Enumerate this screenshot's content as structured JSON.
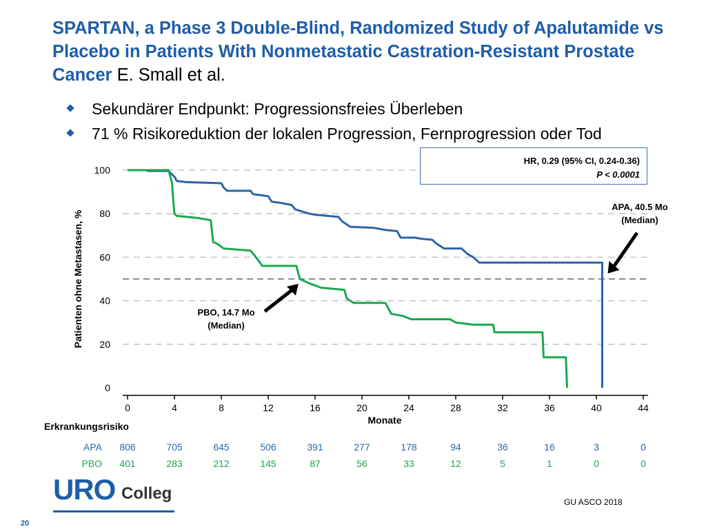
{
  "slide": {
    "title": "SPARTAN, a Phase 3 Double-Blind, Randomized Study of Apalutamide vs Placebo in Patients With Nonmetastatic Castration-Resistant Prostate Cancer",
    "authors": "E. Small et al.",
    "bullets": [
      "Sekundärer Endpunkt: Progressionsfreies Überleben",
      "71 % Risikoreduktion der lokalen Progression, Fernprogression oder Tod"
    ],
    "logo_uro": "URO",
    "logo_colleg": "Colleg",
    "source": "GU ASCO 2018",
    "page_number": "20"
  },
  "colors": {
    "title": "#1f5da8",
    "apa": "#2b64a8",
    "pbo": "#1aa84c",
    "grid": "#bbbbbb"
  },
  "chart_data": {
    "type": "line",
    "xlabel": "Monate",
    "ylabel": "Patienten ohne Metastasen, %",
    "xticks": [
      0,
      4,
      8,
      12,
      16,
      20,
      24,
      28,
      32,
      36,
      40,
      44
    ],
    "yticks": [
      0,
      20,
      40,
      60,
      80,
      100
    ],
    "xlim": [
      0,
      44
    ],
    "ylim": [
      0,
      100
    ],
    "median_line": 50,
    "hr_text": "HR, 0.29 (95% CI, 0.24-0.36)",
    "p_text": "P < 0.0001",
    "series": [
      {
        "name": "APA",
        "color": "#2b64a8",
        "points": [
          [
            0,
            100
          ],
          [
            1.5,
            100
          ],
          [
            1.8,
            99.6
          ],
          [
            3.5,
            99.6
          ],
          [
            3.7,
            98.5
          ],
          [
            4,
            97
          ],
          [
            4.2,
            95
          ],
          [
            5,
            94.5
          ],
          [
            8,
            94
          ],
          [
            8.2,
            92
          ],
          [
            8.5,
            90.5
          ],
          [
            10.5,
            90.5
          ],
          [
            10.7,
            89
          ],
          [
            12,
            88
          ],
          [
            12.3,
            85.5
          ],
          [
            13,
            85
          ],
          [
            14,
            84
          ],
          [
            14.3,
            82
          ],
          [
            15.5,
            80
          ],
          [
            16,
            79.5
          ],
          [
            18,
            78.5
          ],
          [
            18.3,
            76.5
          ],
          [
            19,
            74
          ],
          [
            21,
            73.5
          ],
          [
            22,
            72.5
          ],
          [
            23,
            72
          ],
          [
            23.3,
            69
          ],
          [
            24.5,
            69
          ],
          [
            25,
            68.5
          ],
          [
            26,
            68
          ],
          [
            26.3,
            66.5
          ],
          [
            27,
            64
          ],
          [
            28.5,
            64
          ],
          [
            29,
            61.5
          ],
          [
            29.5,
            60
          ],
          [
            30,
            57.5
          ],
          [
            40.5,
            57.5
          ],
          [
            40.5,
            0
          ]
        ],
        "median": 40.5,
        "median_label": "APA, 40.5 Mo",
        "median_sublabel": "(Median)"
      },
      {
        "name": "PBO",
        "color": "#1aa84c",
        "points": [
          [
            0,
            100
          ],
          [
            3.5,
            100
          ],
          [
            3.6,
            98
          ],
          [
            3.8,
            94
          ],
          [
            3.9,
            86
          ],
          [
            4,
            80
          ],
          [
            4.2,
            79
          ],
          [
            6,
            78
          ],
          [
            7.1,
            77
          ],
          [
            7.3,
            67
          ],
          [
            7.7,
            66
          ],
          [
            8.2,
            64
          ],
          [
            10.5,
            63
          ],
          [
            10.8,
            61
          ],
          [
            11.5,
            56
          ],
          [
            14.4,
            56
          ],
          [
            14.7,
            50
          ],
          [
            15.5,
            48
          ],
          [
            16.5,
            46
          ],
          [
            18.5,
            45
          ],
          [
            18.7,
            41
          ],
          [
            19.3,
            39
          ],
          [
            22,
            39
          ],
          [
            22.2,
            37
          ],
          [
            22.5,
            34
          ],
          [
            23.5,
            33
          ],
          [
            24.2,
            31.5
          ],
          [
            27.5,
            31.5
          ],
          [
            28,
            30
          ],
          [
            29.5,
            29
          ],
          [
            31.2,
            29
          ],
          [
            31.3,
            25.5
          ],
          [
            35.4,
            25.5
          ],
          [
            35.5,
            14
          ],
          [
            37.4,
            14
          ],
          [
            37.5,
            0
          ]
        ],
        "median": 14.7,
        "median_label": "PBO, 14.7 Mo",
        "median_sublabel": "(Median)"
      }
    ],
    "risk_table": {
      "title": "Erkrankungsrisiko",
      "times": [
        0,
        4,
        8,
        12,
        16,
        20,
        24,
        28,
        32,
        36,
        40,
        44
      ],
      "rows": [
        {
          "name": "APA",
          "color": "#2b64a8",
          "values": [
            "806",
            "705",
            "645",
            "506",
            "391",
            "277",
            "178",
            "94",
            "36",
            "16",
            "3",
            "0"
          ]
        },
        {
          "name": "PBO",
          "color": "#1aa84c",
          "values": [
            "401",
            "283",
            "212",
            "145",
            "87",
            "56",
            "33",
            "12",
            "5",
            "1",
            "0",
            "0"
          ]
        }
      ]
    }
  }
}
